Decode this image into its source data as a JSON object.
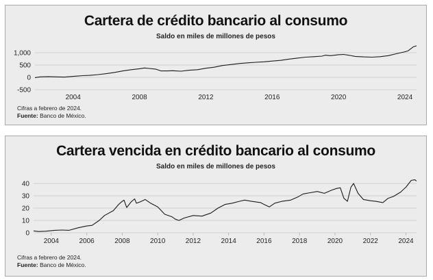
{
  "colors": {
    "panel_bg": "#ececec",
    "border": "#a9a9a9",
    "line": "#1a1a1a",
    "grid": "#cfcfcf"
  },
  "chart_data": [
    {
      "type": "line",
      "title": "Cartera de crédito bancario al consumo",
      "subtitle": "Saldo en miles de millones de pesos",
      "xlabel": "",
      "ylabel": "",
      "xlim": [
        2001.7,
        2024.7
      ],
      "ylim": [
        -500,
        1250
      ],
      "grid": true,
      "legend": "none",
      "yticks": [
        1000,
        500,
        0,
        -500
      ],
      "ytick_labels": [
        "1,000",
        "500",
        "0",
        "-500"
      ],
      "xticks": [
        2004,
        2008,
        2012,
        2016,
        2020,
        2024
      ],
      "xtick_labels": [
        "2004",
        "2008",
        "2012",
        "2016",
        "2020",
        "2024"
      ],
      "note": "Cifras a febrero de 2024.",
      "source_label": "Fuente:",
      "source_text": " Banco de México.",
      "series": [
        {
          "name": "Saldo",
          "x": [
            2001.7,
            2002.0,
            2002.5,
            2003.0,
            2003.5,
            2003.8,
            2004.2,
            2004.6,
            2005.0,
            2005.5,
            2006.0,
            2006.5,
            2007.0,
            2007.5,
            2008.0,
            2008.3,
            2008.6,
            2009.0,
            2009.3,
            2009.7,
            2010.0,
            2010.5,
            2011.0,
            2011.5,
            2012.0,
            2012.5,
            2013.0,
            2013.5,
            2014.0,
            2014.5,
            2015.0,
            2015.5,
            2016.0,
            2016.5,
            2017.0,
            2017.5,
            2018.0,
            2018.5,
            2019.0,
            2019.2,
            2019.5,
            2020.0,
            2020.3,
            2020.7,
            2021.0,
            2021.5,
            2022.0,
            2022.5,
            2023.0,
            2023.5,
            2024.0,
            2024.2,
            2024.5,
            2024.7
          ],
          "y": [
            -10,
            20,
            30,
            20,
            10,
            30,
            50,
            70,
            80,
            110,
            150,
            200,
            260,
            310,
            350,
            380,
            360,
            330,
            260,
            260,
            270,
            250,
            290,
            310,
            370,
            410,
            480,
            520,
            560,
            590,
            610,
            630,
            660,
            690,
            740,
            780,
            820,
            840,
            860,
            900,
            880,
            920,
            930,
            890,
            850,
            830,
            820,
            840,
            880,
            960,
            1040,
            1080,
            1240,
            1280
          ]
        }
      ]
    },
    {
      "type": "line",
      "title": "Cartera vencida en crédito bancario al consumo",
      "subtitle": "Saldo en miles de millones de pesos",
      "xlabel": "",
      "ylabel": "",
      "xlim": [
        2003.0,
        2024.6
      ],
      "ylim": [
        0,
        45
      ],
      "grid": true,
      "legend": "none",
      "yticks": [
        40,
        30,
        20,
        10,
        0
      ],
      "ytick_labels": [
        "40",
        "30",
        "20",
        "10",
        "0"
      ],
      "xticks": [
        2004,
        2006,
        2008,
        2010,
        2012,
        2014,
        2016,
        2018,
        2020,
        2022,
        2024
      ],
      "xtick_labels": [
        "2004",
        "2006",
        "2008",
        "2010",
        "2012",
        "2014",
        "2016",
        "2018",
        "2020",
        "2022",
        "2024"
      ],
      "note": "Cifras a febrero de 2024.",
      "source_label": "Fuente:",
      "source_text": " Banco de México.",
      "series": [
        {
          "name": "Saldo",
          "x": [
            2003.0,
            2003.3,
            2003.7,
            2004.2,
            2004.6,
            2005.0,
            2005.5,
            2006.0,
            2006.3,
            2006.7,
            2007.0,
            2007.5,
            2007.8,
            2008.0,
            2008.1,
            2008.25,
            2008.5,
            2008.7,
            2008.8,
            2009.0,
            2009.3,
            2009.6,
            2010.0,
            2010.4,
            2010.8,
            2011.0,
            2011.2,
            2011.5,
            2012.0,
            2012.5,
            2013.0,
            2013.4,
            2013.8,
            2014.2,
            2014.6,
            2014.9,
            2015.3,
            2015.8,
            2016.0,
            2016.3,
            2016.6,
            2017.0,
            2017.5,
            2017.9,
            2018.2,
            2018.6,
            2019.0,
            2019.4,
            2019.8,
            2020.1,
            2020.3,
            2020.5,
            2020.7,
            2020.9,
            2021.05,
            2021.3,
            2021.6,
            2022.0,
            2022.3,
            2022.7,
            2023.0,
            2023.3,
            2023.7,
            2024.0,
            2024.3,
            2024.5,
            2024.6
          ],
          "y": [
            1.5,
            1.0,
            1.3,
            2.0,
            2.2,
            2.0,
            4.0,
            5.5,
            6.0,
            10.0,
            14.0,
            18.0,
            23.0,
            25.5,
            26.5,
            20.5,
            25.0,
            27.5,
            24.0,
            25.0,
            27.0,
            24.0,
            21.0,
            15.0,
            13.0,
            11.0,
            10.0,
            12.0,
            14.0,
            13.5,
            16.0,
            20.0,
            23.0,
            24.0,
            25.5,
            26.5,
            25.5,
            24.5,
            23.0,
            21.0,
            24.0,
            25.5,
            26.5,
            29.0,
            31.5,
            32.5,
            33.5,
            32.0,
            34.5,
            36.0,
            36.5,
            28.0,
            25.5,
            37.0,
            40.0,
            32.0,
            27.0,
            26.0,
            25.5,
            24.5,
            28.0,
            29.5,
            33.0,
            37.0,
            42.5,
            43.0,
            42.0
          ]
        }
      ]
    }
  ]
}
